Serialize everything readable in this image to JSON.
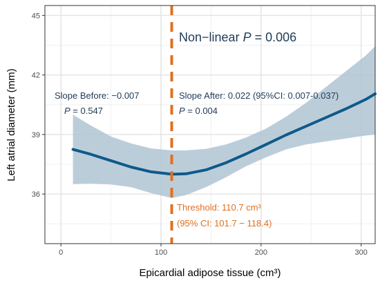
{
  "chart_data": {
    "type": "line",
    "xlabel": "Epicardial adipose tissue (cm³)",
    "ylabel": "Left atrial diameter (mm)",
    "xlim": [
      -16,
      314
    ],
    "ylim": [
      33.5,
      45.5
    ],
    "x_ticks": [
      0,
      100,
      200,
      300
    ],
    "y_ticks": [
      36,
      39,
      42,
      45
    ],
    "grid": true,
    "curve": {
      "x": [
        12,
        30,
        50,
        70,
        90,
        110.7,
        125,
        145,
        165,
        185,
        205,
        225,
        245,
        265,
        285,
        305,
        314
      ],
      "y": [
        38.25,
        38.0,
        37.68,
        37.36,
        37.12,
        37.0,
        37.02,
        37.22,
        37.58,
        38.02,
        38.5,
        38.98,
        39.42,
        39.86,
        40.3,
        40.78,
        41.05
      ]
    },
    "ci_band": {
      "x": [
        12,
        30,
        50,
        70,
        90,
        110.7,
        125,
        145,
        165,
        185,
        205,
        225,
        245,
        265,
        285,
        305,
        314
      ],
      "lower": [
        36.5,
        36.52,
        36.48,
        36.35,
        36.05,
        35.8,
        35.95,
        36.35,
        36.85,
        37.4,
        37.85,
        38.25,
        38.5,
        38.65,
        38.8,
        38.95,
        39.0
      ],
      "upper": [
        40.0,
        39.45,
        38.9,
        38.55,
        38.3,
        38.2,
        38.2,
        38.28,
        38.5,
        38.85,
        39.3,
        39.9,
        40.6,
        41.4,
        42.2,
        43.0,
        43.45
      ]
    },
    "threshold_x": 110.7,
    "colors": {
      "line": "#0e5a8a",
      "band": "#b0c4d4",
      "threshold": "#e07020",
      "text_blue": "#1f3b57",
      "text_orange": "#e07020",
      "grid": "#e5e5e5",
      "axis": "#333333"
    }
  },
  "annotations": {
    "nonlinear_prefix": "Non−linear ",
    "nonlinear_p": "P",
    "nonlinear_suffix": " = 0.006",
    "slope_before": "Slope Before: −0.007",
    "slope_before_p": "P",
    "slope_before_p_value": " = 0.547",
    "slope_after": "Slope After: 0.022 (95%CI: 0.007-0.037)",
    "slope_after_p": "P",
    "slope_after_p_value": " = 0.004",
    "threshold_line1": "Threshold: 110.7 cm³",
    "threshold_line2": "(95% CI: 101.7 − 118.4)"
  }
}
